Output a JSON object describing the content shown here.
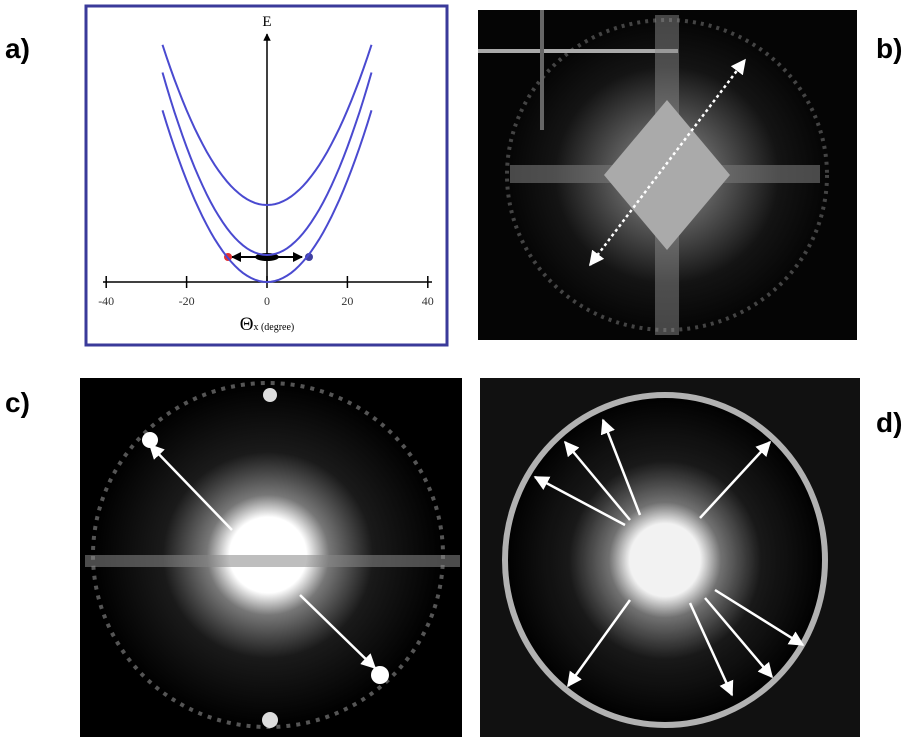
{
  "panel_labels": [
    "a)",
    "b)",
    "c)",
    "d)"
  ],
  "panel_a": {
    "y_label": "E",
    "x_label": "Θ",
    "x_label_sub": "x (degree)",
    "xticks": [
      -40,
      -20,
      0,
      20,
      40
    ]
  }
}
